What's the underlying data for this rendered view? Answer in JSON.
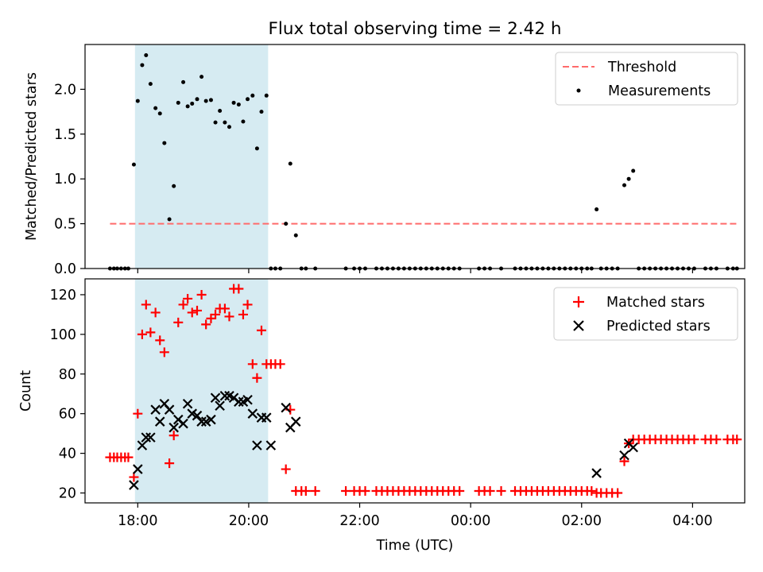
{
  "title": "Flux total observing time = 2.42 h",
  "colors": {
    "threshold": "#ff6b6b",
    "measurement": "#000000",
    "matched": "#ff0000",
    "predicted": "#000000",
    "shade": "#add8e6"
  },
  "chart_data": [
    {
      "type": "scatter",
      "ylabel": "Matched/Predicted stars",
      "xlim_hours": [
        17.05,
        28.94
      ],
      "ylim": [
        0,
        2.5
      ],
      "yticks": [
        0.0,
        0.5,
        1.0,
        1.5,
        2.0
      ],
      "ytick_labels": [
        "0.0",
        "0.5",
        "1.0",
        "1.5",
        "2.0"
      ],
      "shaded_span_hours": [
        17.95,
        20.35
      ],
      "threshold": {
        "value": 0.5,
        "x_range_hours": [
          17.5,
          28.8
        ]
      },
      "legend": {
        "position": "top-right",
        "entries": [
          "Threshold",
          "Measurements"
        ]
      },
      "measurements": [
        [
          17.5,
          0
        ],
        [
          17.57,
          0
        ],
        [
          17.63,
          0
        ],
        [
          17.7,
          0
        ],
        [
          17.77,
          0
        ],
        [
          17.83,
          0
        ],
        [
          17.93,
          1.16
        ],
        [
          18.0,
          1.87
        ],
        [
          18.08,
          2.27
        ],
        [
          18.15,
          2.38
        ],
        [
          18.23,
          2.06
        ],
        [
          18.32,
          1.79
        ],
        [
          18.4,
          1.73
        ],
        [
          18.48,
          1.4
        ],
        [
          18.57,
          0.55
        ],
        [
          18.65,
          0.92
        ],
        [
          18.73,
          1.85
        ],
        [
          18.82,
          2.08
        ],
        [
          18.9,
          1.81
        ],
        [
          18.98,
          1.84
        ],
        [
          19.07,
          1.89
        ],
        [
          19.15,
          2.14
        ],
        [
          19.23,
          1.87
        ],
        [
          19.32,
          1.88
        ],
        [
          19.4,
          1.63
        ],
        [
          19.48,
          1.76
        ],
        [
          19.57,
          1.63
        ],
        [
          19.65,
          1.58
        ],
        [
          19.73,
          1.85
        ],
        [
          19.82,
          1.83
        ],
        [
          19.9,
          1.64
        ],
        [
          19.98,
          1.89
        ],
        [
          20.07,
          1.93
        ],
        [
          20.15,
          1.34
        ],
        [
          20.23,
          1.75
        ],
        [
          20.32,
          1.93
        ],
        [
          20.4,
          0
        ],
        [
          20.48,
          0
        ],
        [
          20.57,
          0
        ],
        [
          20.67,
          0.5
        ],
        [
          20.75,
          1.17
        ],
        [
          20.85,
          0.37
        ],
        [
          20.95,
          0
        ],
        [
          21.03,
          0
        ],
        [
          21.2,
          0
        ],
        [
          21.75,
          0
        ],
        [
          21.9,
          0
        ],
        [
          22.0,
          0
        ],
        [
          22.1,
          0
        ],
        [
          22.3,
          0
        ],
        [
          22.4,
          0
        ],
        [
          22.5,
          0
        ],
        [
          22.6,
          0
        ],
        [
          22.7,
          0
        ],
        [
          22.8,
          0
        ],
        [
          22.9,
          0
        ],
        [
          23.0,
          0
        ],
        [
          23.1,
          0
        ],
        [
          23.2,
          0
        ],
        [
          23.3,
          0
        ],
        [
          23.4,
          0
        ],
        [
          23.5,
          0
        ],
        [
          23.6,
          0
        ],
        [
          23.7,
          0
        ],
        [
          23.8,
          0
        ],
        [
          24.15,
          0
        ],
        [
          24.25,
          0
        ],
        [
          24.35,
          0
        ],
        [
          24.55,
          0
        ],
        [
          24.8,
          0
        ],
        [
          24.9,
          0
        ],
        [
          25.0,
          0
        ],
        [
          25.1,
          0
        ],
        [
          25.2,
          0
        ],
        [
          25.3,
          0
        ],
        [
          25.4,
          0
        ],
        [
          25.5,
          0
        ],
        [
          25.6,
          0
        ],
        [
          25.7,
          0
        ],
        [
          25.8,
          0
        ],
        [
          25.9,
          0
        ],
        [
          26.0,
          0
        ],
        [
          26.1,
          0
        ],
        [
          26.18,
          0
        ],
        [
          26.27,
          0.66
        ],
        [
          26.35,
          0
        ],
        [
          26.45,
          0
        ],
        [
          26.55,
          0
        ],
        [
          26.65,
          0
        ],
        [
          26.77,
          0.93
        ],
        [
          26.85,
          1.0
        ],
        [
          26.93,
          1.09
        ],
        [
          27.03,
          0
        ],
        [
          27.13,
          0
        ],
        [
          27.23,
          0
        ],
        [
          27.33,
          0
        ],
        [
          27.43,
          0
        ],
        [
          27.53,
          0
        ],
        [
          27.63,
          0
        ],
        [
          27.73,
          0
        ],
        [
          27.83,
          0
        ],
        [
          27.93,
          0
        ],
        [
          28.03,
          0
        ],
        [
          28.23,
          0
        ],
        [
          28.33,
          0
        ],
        [
          28.43,
          0
        ],
        [
          28.63,
          0
        ],
        [
          28.73,
          0
        ],
        [
          28.8,
          0
        ]
      ]
    },
    {
      "type": "scatter",
      "xlabel": "Time (UTC)",
      "ylabel": "Count",
      "xlim_hours": [
        17.05,
        28.94
      ],
      "ylim": [
        15,
        128
      ],
      "yticks": [
        20,
        40,
        60,
        80,
        100,
        120
      ],
      "ytick_labels": [
        "20",
        "40",
        "60",
        "80",
        "100",
        "120"
      ],
      "xticks_hours": [
        18,
        20,
        22,
        24,
        26,
        28
      ],
      "xtick_labels": [
        "18:00",
        "20:00",
        "22:00",
        "00:00",
        "02:00",
        "04:00"
      ],
      "shaded_span_hours": [
        17.95,
        20.35
      ],
      "legend": {
        "position": "top-right",
        "entries": [
          "Matched stars",
          "Predicted stars"
        ]
      },
      "series": [
        {
          "name": "Matched stars",
          "marker": "+",
          "points": [
            [
              17.5,
              38
            ],
            [
              17.57,
              38
            ],
            [
              17.63,
              38
            ],
            [
              17.7,
              38
            ],
            [
              17.77,
              38
            ],
            [
              17.83,
              38
            ],
            [
              17.93,
              28
            ],
            [
              18.0,
              60
            ],
            [
              18.08,
              100
            ],
            [
              18.15,
              115
            ],
            [
              18.23,
              101
            ],
            [
              18.32,
              111
            ],
            [
              18.4,
              97
            ],
            [
              18.48,
              91
            ],
            [
              18.57,
              35
            ],
            [
              18.65,
              49
            ],
            [
              18.73,
              106
            ],
            [
              18.82,
              115
            ],
            [
              18.9,
              118
            ],
            [
              18.98,
              111
            ],
            [
              19.07,
              112
            ],
            [
              19.15,
              120
            ],
            [
              19.23,
              105
            ],
            [
              19.32,
              108
            ],
            [
              19.4,
              110
            ],
            [
              19.48,
              113
            ],
            [
              19.57,
              113
            ],
            [
              19.65,
              109
            ],
            [
              19.73,
              123
            ],
            [
              19.82,
              123
            ],
            [
              19.9,
              110
            ],
            [
              19.98,
              115
            ],
            [
              20.07,
              85
            ],
            [
              20.15,
              78
            ],
            [
              20.23,
              102
            ],
            [
              20.32,
              85
            ],
            [
              20.4,
              85
            ],
            [
              20.48,
              85
            ],
            [
              20.57,
              85
            ],
            [
              20.67,
              32
            ],
            [
              20.75,
              62
            ],
            [
              20.85,
              21
            ],
            [
              20.95,
              21
            ],
            [
              21.03,
              21
            ],
            [
              21.2,
              21
            ],
            [
              21.75,
              21
            ],
            [
              21.9,
              21
            ],
            [
              22.0,
              21
            ],
            [
              22.1,
              21
            ],
            [
              22.3,
              21
            ],
            [
              22.4,
              21
            ],
            [
              22.5,
              21
            ],
            [
              22.6,
              21
            ],
            [
              22.7,
              21
            ],
            [
              22.8,
              21
            ],
            [
              22.9,
              21
            ],
            [
              23.0,
              21
            ],
            [
              23.1,
              21
            ],
            [
              23.2,
              21
            ],
            [
              23.3,
              21
            ],
            [
              23.4,
              21
            ],
            [
              23.5,
              21
            ],
            [
              23.6,
              21
            ],
            [
              23.7,
              21
            ],
            [
              23.8,
              21
            ],
            [
              24.15,
              21
            ],
            [
              24.25,
              21
            ],
            [
              24.35,
              21
            ],
            [
              24.55,
              21
            ],
            [
              24.8,
              21
            ],
            [
              24.9,
              21
            ],
            [
              25.0,
              21
            ],
            [
              25.1,
              21
            ],
            [
              25.2,
              21
            ],
            [
              25.3,
              21
            ],
            [
              25.4,
              21
            ],
            [
              25.5,
              21
            ],
            [
              25.6,
              21
            ],
            [
              25.7,
              21
            ],
            [
              25.8,
              21
            ],
            [
              25.9,
              21
            ],
            [
              26.0,
              21
            ],
            [
              26.1,
              21
            ],
            [
              26.18,
              21
            ],
            [
              26.27,
              20
            ],
            [
              26.35,
              20
            ],
            [
              26.45,
              20
            ],
            [
              26.55,
              20
            ],
            [
              26.65,
              20
            ],
            [
              26.77,
              36
            ],
            [
              26.85,
              45
            ],
            [
              26.93,
              47
            ],
            [
              27.03,
              47
            ],
            [
              27.13,
              47
            ],
            [
              27.23,
              47
            ],
            [
              27.33,
              47
            ],
            [
              27.43,
              47
            ],
            [
              27.53,
              47
            ],
            [
              27.63,
              47
            ],
            [
              27.73,
              47
            ],
            [
              27.83,
              47
            ],
            [
              27.93,
              47
            ],
            [
              28.03,
              47
            ],
            [
              28.23,
              47
            ],
            [
              28.33,
              47
            ],
            [
              28.43,
              47
            ],
            [
              28.63,
              47
            ],
            [
              28.73,
              47
            ],
            [
              28.8,
              47
            ]
          ]
        },
        {
          "name": "Predicted stars",
          "marker": "x",
          "points": [
            [
              17.93,
              24
            ],
            [
              18.0,
              32
            ],
            [
              18.08,
              44
            ],
            [
              18.15,
              48
            ],
            [
              18.23,
              48
            ],
            [
              18.32,
              62
            ],
            [
              18.4,
              56
            ],
            [
              18.48,
              65
            ],
            [
              18.57,
              62
            ],
            [
              18.65,
              53
            ],
            [
              18.73,
              57
            ],
            [
              18.82,
              55
            ],
            [
              18.9,
              65
            ],
            [
              18.98,
              60
            ],
            [
              19.07,
              59
            ],
            [
              19.15,
              56
            ],
            [
              19.23,
              56
            ],
            [
              19.32,
              57
            ],
            [
              19.4,
              68
            ],
            [
              19.48,
              64
            ],
            [
              19.57,
              69
            ],
            [
              19.65,
              69
            ],
            [
              19.73,
              68
            ],
            [
              19.82,
              66
            ],
            [
              19.9,
              66
            ],
            [
              19.98,
              67
            ],
            [
              20.07,
              60
            ],
            [
              20.15,
              44
            ],
            [
              20.23,
              58
            ],
            [
              20.32,
              58
            ],
            [
              20.4,
              44
            ],
            [
              20.67,
              63
            ],
            [
              20.75,
              53
            ],
            [
              20.85,
              56
            ],
            [
              26.27,
              30
            ],
            [
              26.77,
              39
            ],
            [
              26.85,
              45
            ],
            [
              26.93,
              43
            ]
          ]
        }
      ]
    }
  ]
}
